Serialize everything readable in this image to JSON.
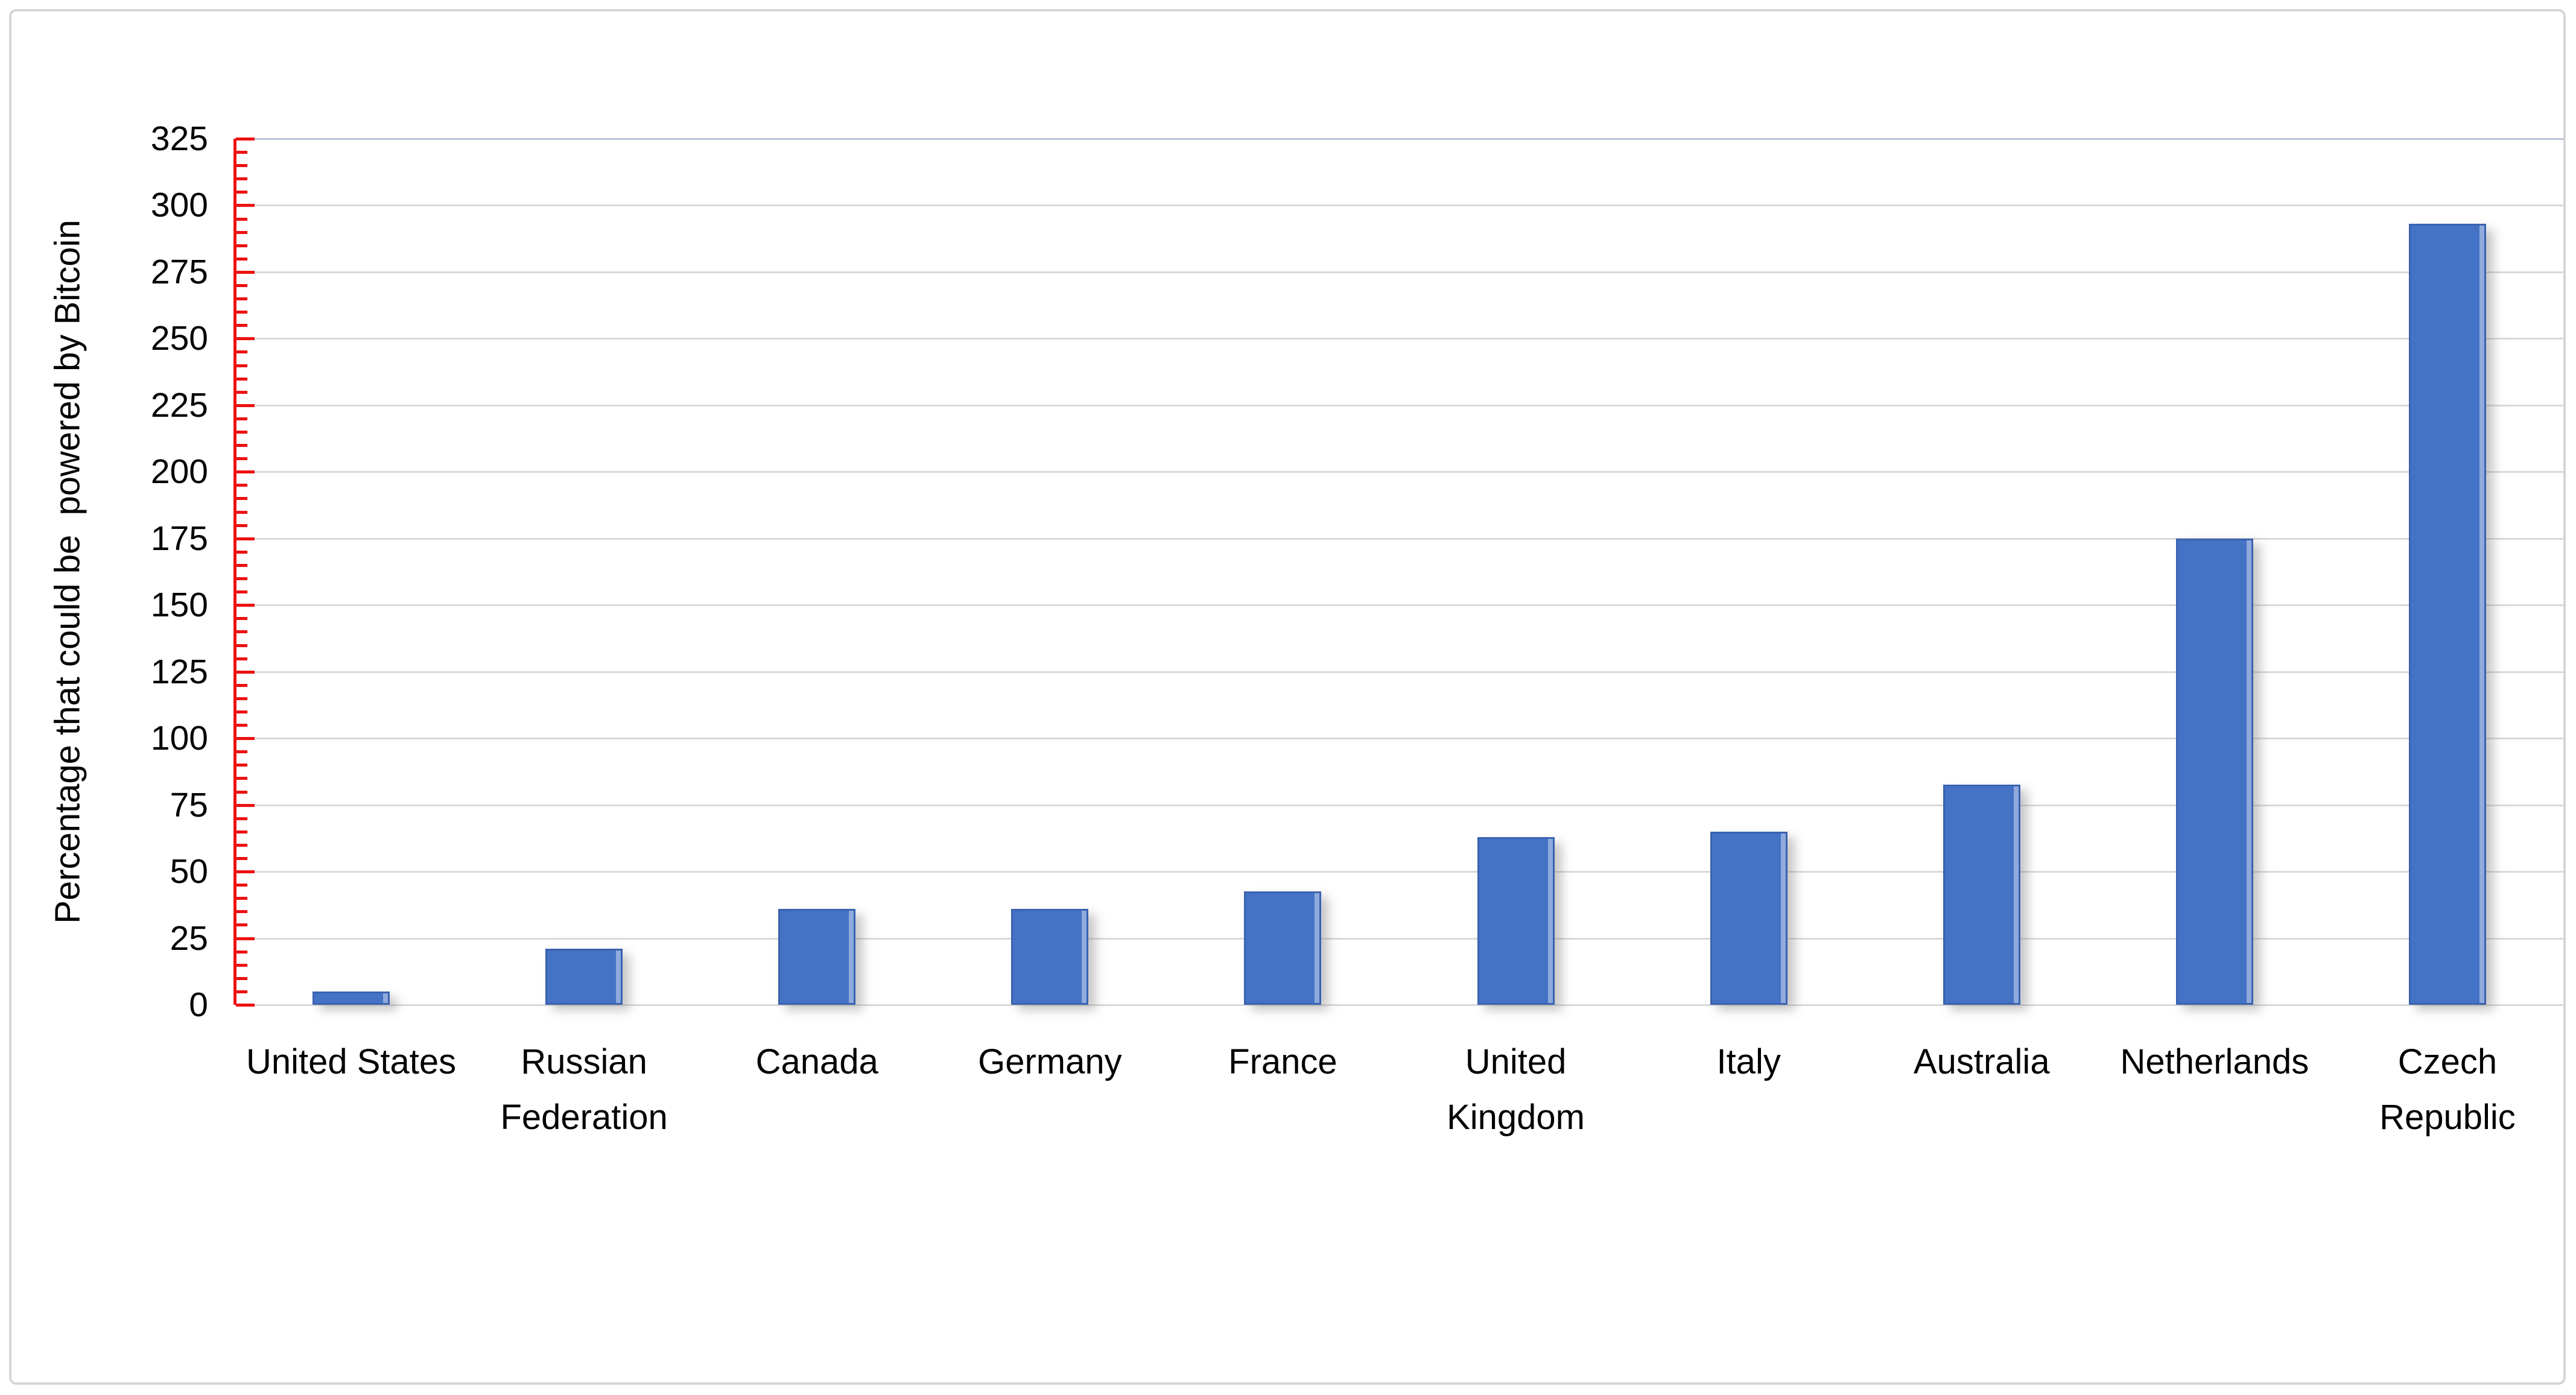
{
  "figure": {
    "background": "#ffffff",
    "frame_color": "#d6d6d6"
  },
  "chart_data": {
    "type": "bar",
    "title": "",
    "xlabel": "",
    "ylabel": "Percentage that could be  powered by Bitcoin",
    "categories": [
      "United States",
      "Russian Federation",
      "Canada",
      "Germany",
      "France",
      "United Kingdom",
      "Italy",
      "Australia",
      "Netherlands",
      "Czech Republic"
    ],
    "values": [
      5,
      21,
      36,
      36,
      42.5,
      63,
      65,
      82.5,
      175,
      293
    ],
    "ylim": [
      0,
      325
    ],
    "ytick_step": 25,
    "ytick_labels": [
      "0",
      "25",
      "50",
      "75",
      "100",
      "125",
      "150",
      "175",
      "200",
      "225",
      "250",
      "275",
      "300",
      "325"
    ],
    "minor_tick_step": 5,
    "grid": true,
    "legend_position": "none",
    "bar_color": "#4472c4",
    "bar_edge_color": "#3a62b0",
    "bar_highlight_color": "#8faadc",
    "axis_line_color": "#ee1111",
    "gridline_color": "#d9d9d9",
    "top_line_color": "#b8c4d9",
    "text_color": "#000000"
  }
}
